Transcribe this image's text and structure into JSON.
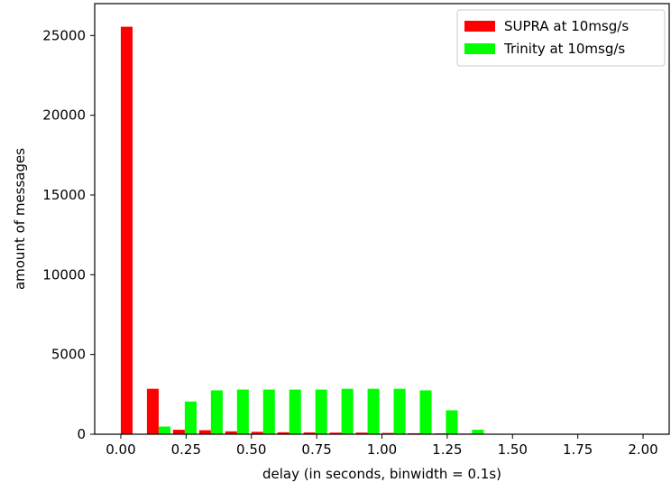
{
  "chart_data": {
    "type": "bar",
    "xlabel": "delay (in seconds, binwidth = 0.1s)",
    "ylabel": "amount of messages",
    "xlim": [
      -0.1,
      2.1
    ],
    "ylim": [
      0,
      27000
    ],
    "xticks": [
      0.0,
      0.25,
      0.5,
      0.75,
      1.0,
      1.25,
      1.5,
      1.75,
      2.0
    ],
    "xtick_labels": [
      "0.00",
      "0.25",
      "0.50",
      "0.75",
      "1.00",
      "1.25",
      "1.50",
      "1.75",
      "2.00"
    ],
    "yticks": [
      0,
      5000,
      10000,
      15000,
      20000,
      25000
    ],
    "ytick_labels": [
      "0",
      "5000",
      "10000",
      "15000",
      "20000",
      "25000"
    ],
    "bin_width": 0.1,
    "bins": [
      0.0,
      0.1,
      0.2,
      0.3,
      0.4,
      0.5,
      0.6,
      0.7,
      0.8,
      0.9,
      1.0,
      1.1,
      1.2,
      1.3
    ],
    "series": [
      {
        "name": "SUPRA at 10msg/s",
        "color": "#ff0000",
        "values": [
          25550,
          2850,
          280,
          250,
          180,
          150,
          120,
          110,
          100,
          100,
          80,
          60,
          50,
          40
        ]
      },
      {
        "name": "Trinity at 10msg/s",
        "color": "#00ff00",
        "values": [
          0,
          480,
          2050,
          2750,
          2800,
          2800,
          2800,
          2800,
          2850,
          2850,
          2850,
          2750,
          1500,
          280
        ]
      }
    ],
    "grid": false,
    "legend": "top-right"
  }
}
